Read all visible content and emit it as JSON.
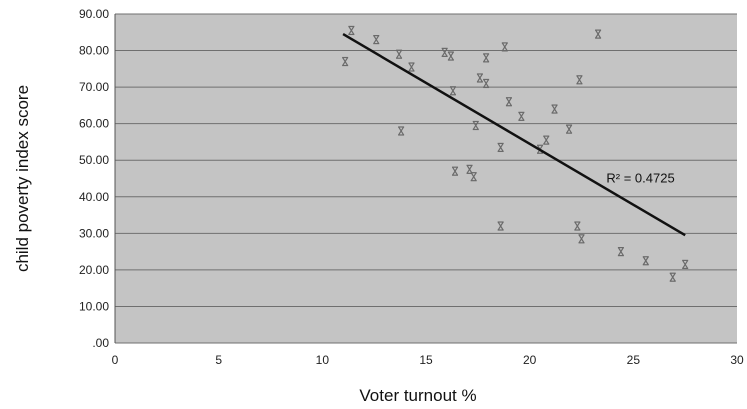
{
  "chart_data": {
    "type": "scatter",
    "title": "",
    "xlabel": "Voter turnout %",
    "ylabel": "child poverty index score",
    "xlim": [
      0,
      30
    ],
    "ylim": [
      0,
      90
    ],
    "x_ticks": [
      "0",
      "5",
      "10",
      "15",
      "20",
      "25",
      "30"
    ],
    "y_ticks": [
      ".00",
      "10.00",
      "20.00",
      "30.00",
      "40.00",
      "50.00",
      "60.00",
      "70.00",
      "80.00",
      "90.00"
    ],
    "grid": true,
    "legend": "none",
    "plot_background": "#c4c4c4",
    "gridline_color": "#6f6f6f",
    "marker_color": "#6a6a6a",
    "trendline_color": "#111111",
    "points": [
      {
        "x": 11.1,
        "y": 77.0
      },
      {
        "x": 11.4,
        "y": 85.5
      },
      {
        "x": 12.6,
        "y": 83.0
      },
      {
        "x": 13.7,
        "y": 79.0
      },
      {
        "x": 13.8,
        "y": 58.0
      },
      {
        "x": 14.3,
        "y": 75.5
      },
      {
        "x": 15.9,
        "y": 79.5
      },
      {
        "x": 16.2,
        "y": 78.5
      },
      {
        "x": 16.3,
        "y": 69.0
      },
      {
        "x": 16.4,
        "y": 47.0
      },
      {
        "x": 17.1,
        "y": 47.5
      },
      {
        "x": 17.3,
        "y": 45.5
      },
      {
        "x": 17.4,
        "y": 59.5
      },
      {
        "x": 17.6,
        "y": 72.5
      },
      {
        "x": 17.9,
        "y": 71.0
      },
      {
        "x": 17.9,
        "y": 78.0
      },
      {
        "x": 18.6,
        "y": 32.0
      },
      {
        "x": 18.6,
        "y": 53.5
      },
      {
        "x": 18.8,
        "y": 81.0
      },
      {
        "x": 19.0,
        "y": 66.0
      },
      {
        "x": 19.6,
        "y": 62.0
      },
      {
        "x": 20.5,
        "y": 53.0
      },
      {
        "x": 20.8,
        "y": 55.5
      },
      {
        "x": 21.2,
        "y": 64.0
      },
      {
        "x": 21.9,
        "y": 58.5
      },
      {
        "x": 22.3,
        "y": 32.0
      },
      {
        "x": 22.4,
        "y": 72.0
      },
      {
        "x": 22.5,
        "y": 28.5
      },
      {
        "x": 23.3,
        "y": 84.5
      },
      {
        "x": 24.4,
        "y": 25.0
      },
      {
        "x": 25.6,
        "y": 22.5
      },
      {
        "x": 26.9,
        "y": 18.0
      },
      {
        "x": 27.5,
        "y": 21.5
      }
    ],
    "trendline": {
      "x": [
        11.0,
        27.5
      ],
      "y": [
        84.5,
        29.5
      ]
    },
    "annotation": {
      "text": "R² = 0.4725",
      "x": 23.7,
      "y": 45.0
    }
  }
}
